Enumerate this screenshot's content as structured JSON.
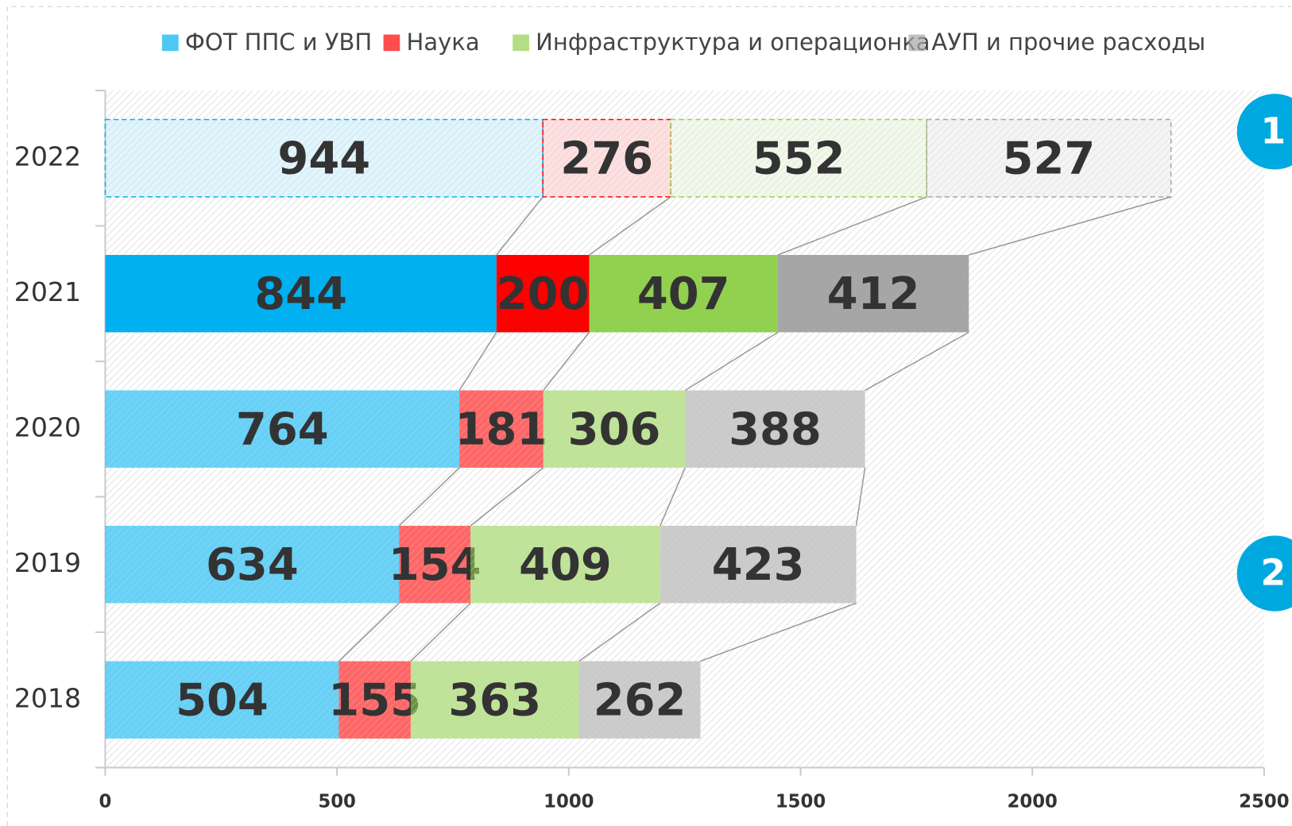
{
  "chart_data": {
    "type": "bar",
    "orientation": "horizontal",
    "stacked": true,
    "categories": [
      "2022",
      "2021",
      "2020",
      "2019",
      "2018"
    ],
    "series": [
      {
        "name": "ФОТ ППС и УВП",
        "color": "#00b0f0",
        "values": [
          944,
          844,
          764,
          634,
          504
        ]
      },
      {
        "name": "Наука",
        "color": "#ff0000",
        "values": [
          276,
          200,
          181,
          154,
          155
        ]
      },
      {
        "name": "Инфраструктура и операционка",
        "color": "#92d050",
        "values": [
          552,
          407,
          306,
          409,
          363
        ]
      },
      {
        "name": "АУП и прочие расходы",
        "color": "#a6a6a6",
        "values": [
          527,
          412,
          388,
          423,
          262
        ]
      }
    ],
    "xlim": [
      0,
      2500
    ],
    "xticks": [
      0,
      500,
      1000,
      1500,
      2000,
      2500
    ],
    "annotations": [
      "1",
      "2"
    ],
    "grid": false
  }
}
